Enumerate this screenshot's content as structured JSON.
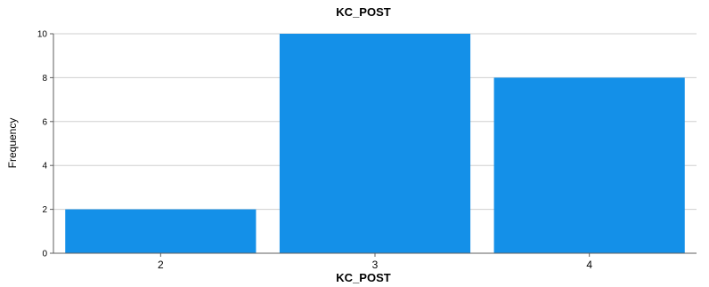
{
  "chart_data": {
    "type": "bar",
    "title": "KC_POST",
    "xlabel": "KC_POST",
    "ylabel": "Frequency",
    "categories": [
      "2",
      "3",
      "4"
    ],
    "values": [
      2,
      10,
      8
    ],
    "ylim": [
      0,
      10
    ],
    "yticks": [
      0,
      2,
      4,
      6,
      8,
      10
    ],
    "grid": true,
    "bar_color": "#1490e8",
    "grid_color": "#cfcfcf",
    "axis_color": "#5f5f5f"
  }
}
